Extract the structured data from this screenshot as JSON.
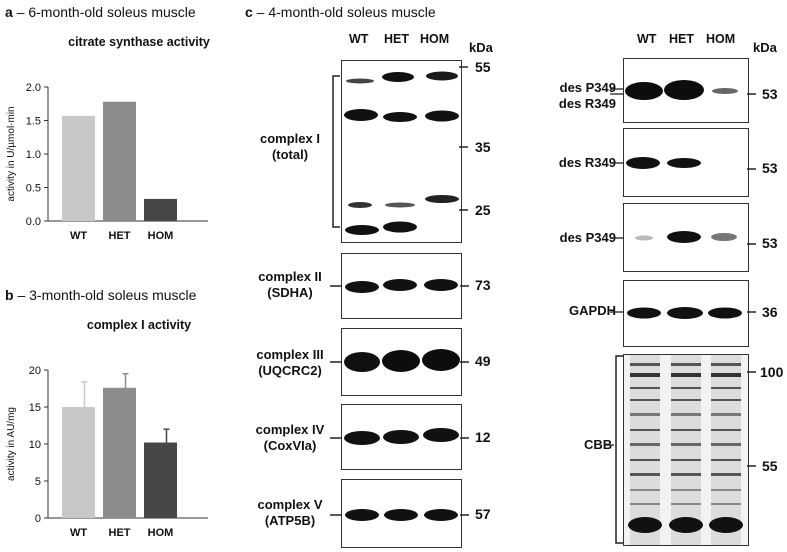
{
  "panel_a": {
    "letter": "a",
    "title": " – 6-month-old soleus muscle",
    "chart_title": "citrate synthase activity"
  },
  "panel_b": {
    "letter": "b",
    "title": " – 3-month-old soleus muscle",
    "chart_title": "complex I activity"
  },
  "panel_c": {
    "letter": "c",
    "title": " – 4-month-old soleus muscle"
  },
  "lanes": [
    "WT",
    "HET",
    "HOM"
  ],
  "kda_label": "kDa",
  "blots_left": [
    {
      "label": [
        "complex I",
        "(total)"
      ],
      "markers": [
        "55",
        "35",
        "25"
      ]
    },
    {
      "label": [
        "complex II",
        "(SDHA)"
      ],
      "markers": [
        "73"
      ]
    },
    {
      "label": [
        "complex III",
        "(UQCRC2)"
      ],
      "markers": [
        "49"
      ]
    },
    {
      "label": [
        "complex IV",
        "(CoxVIa)"
      ],
      "markers": [
        "12"
      ]
    },
    {
      "label": [
        "complex V",
        "(ATP5B)"
      ],
      "markers": [
        "57"
      ]
    }
  ],
  "blots_right": [
    {
      "label": [
        "des P349",
        "des R349"
      ],
      "markers": [
        "53"
      ]
    },
    {
      "label": [
        "des R349"
      ],
      "markers": [
        "53"
      ]
    },
    {
      "label": [
        "des P349"
      ],
      "markers": [
        "53"
      ]
    },
    {
      "label": [
        "GAPDH"
      ],
      "markers": [
        "36"
      ]
    },
    {
      "label": [
        "CBB"
      ],
      "markers": [
        "100",
        "55"
      ]
    }
  ],
  "chart_data": [
    {
      "type": "bar",
      "title": "citrate synthase activity",
      "categories": [
        "WT",
        "HET",
        "HOM"
      ],
      "values": [
        1.57,
        1.78,
        0.33
      ],
      "colors": [
        "#c8c8c8",
        "#8c8c8c",
        "#474747"
      ],
      "ylabel": "activity in U/µmol·min",
      "ylim": [
        0,
        2.0
      ],
      "yticks": [
        "0.0",
        "0.5",
        "1.0",
        "1.5",
        "2.0"
      ],
      "grid": false
    },
    {
      "type": "bar",
      "title": "complex I activity",
      "categories": [
        "WT",
        "HET",
        "HOM"
      ],
      "values": [
        15.0,
        17.6,
        10.2
      ],
      "errors": [
        3.4,
        1.9,
        1.8
      ],
      "colors": [
        "#c8c8c8",
        "#8c8c8c",
        "#474747"
      ],
      "ylabel": "activity in AU/mg",
      "ylim": [
        0,
        20
      ],
      "yticks": [
        "0",
        "5",
        "10",
        "15",
        "20"
      ],
      "grid": false
    }
  ]
}
